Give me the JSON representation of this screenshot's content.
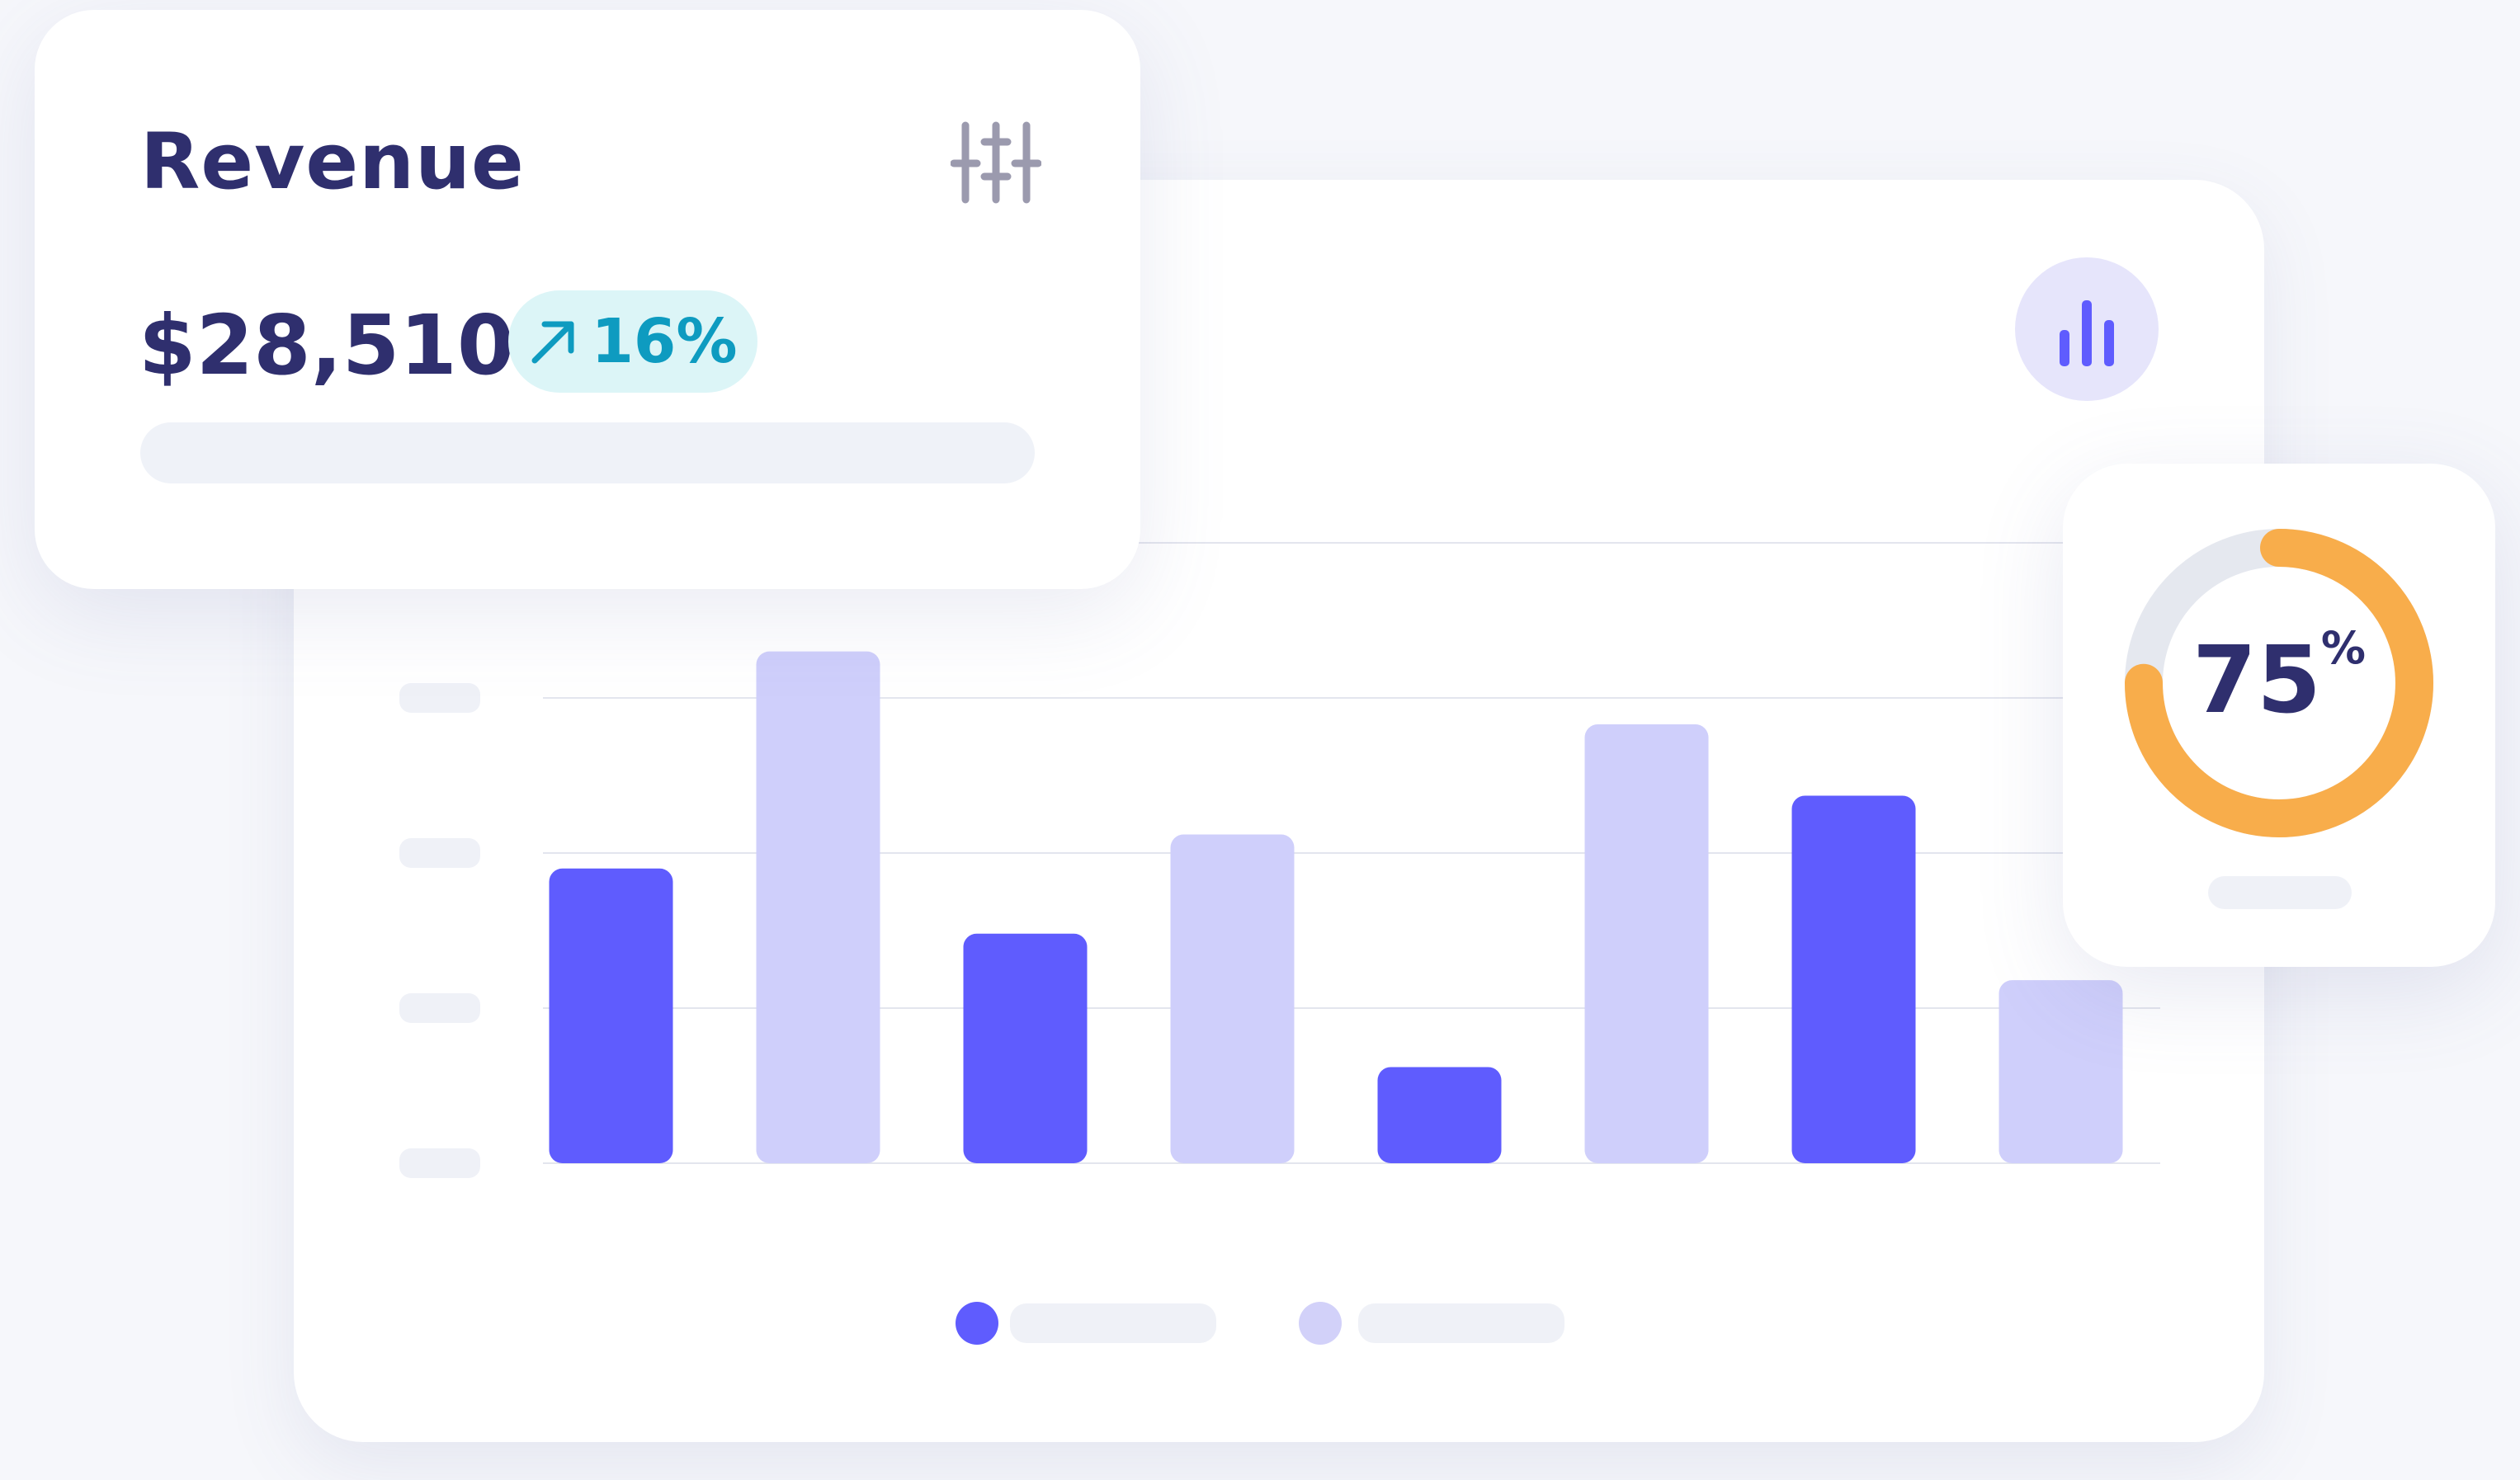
{
  "revenue": {
    "title": "Revenue",
    "value": "$28,510",
    "change": "16%",
    "change_icon": "arrow-up-right-icon",
    "settings_icon": "sliders-icon"
  },
  "chart_data": {
    "type": "bar",
    "values": [
      190,
      330,
      148,
      212,
      62,
      283,
      237,
      118
    ],
    "emphasis": [
      "primary",
      "secondary",
      "primary",
      "secondary",
      "primary",
      "secondary",
      "primary",
      "secondary"
    ],
    "ylim": [
      0,
      400
    ],
    "grid": true,
    "legend": "bottom-center"
  },
  "chart_icon": "bar-chart-icon",
  "donut": {
    "percent": 75,
    "value_label": "75",
    "unit": "%"
  },
  "colors": {
    "primary": "#5f5cfe",
    "secondary": "#cfcffb",
    "accent_orange": "#f8ad4b",
    "donut_track": "#e5e8ef",
    "teal": "#0e9bc0",
    "navy": "#2f2f6e"
  }
}
